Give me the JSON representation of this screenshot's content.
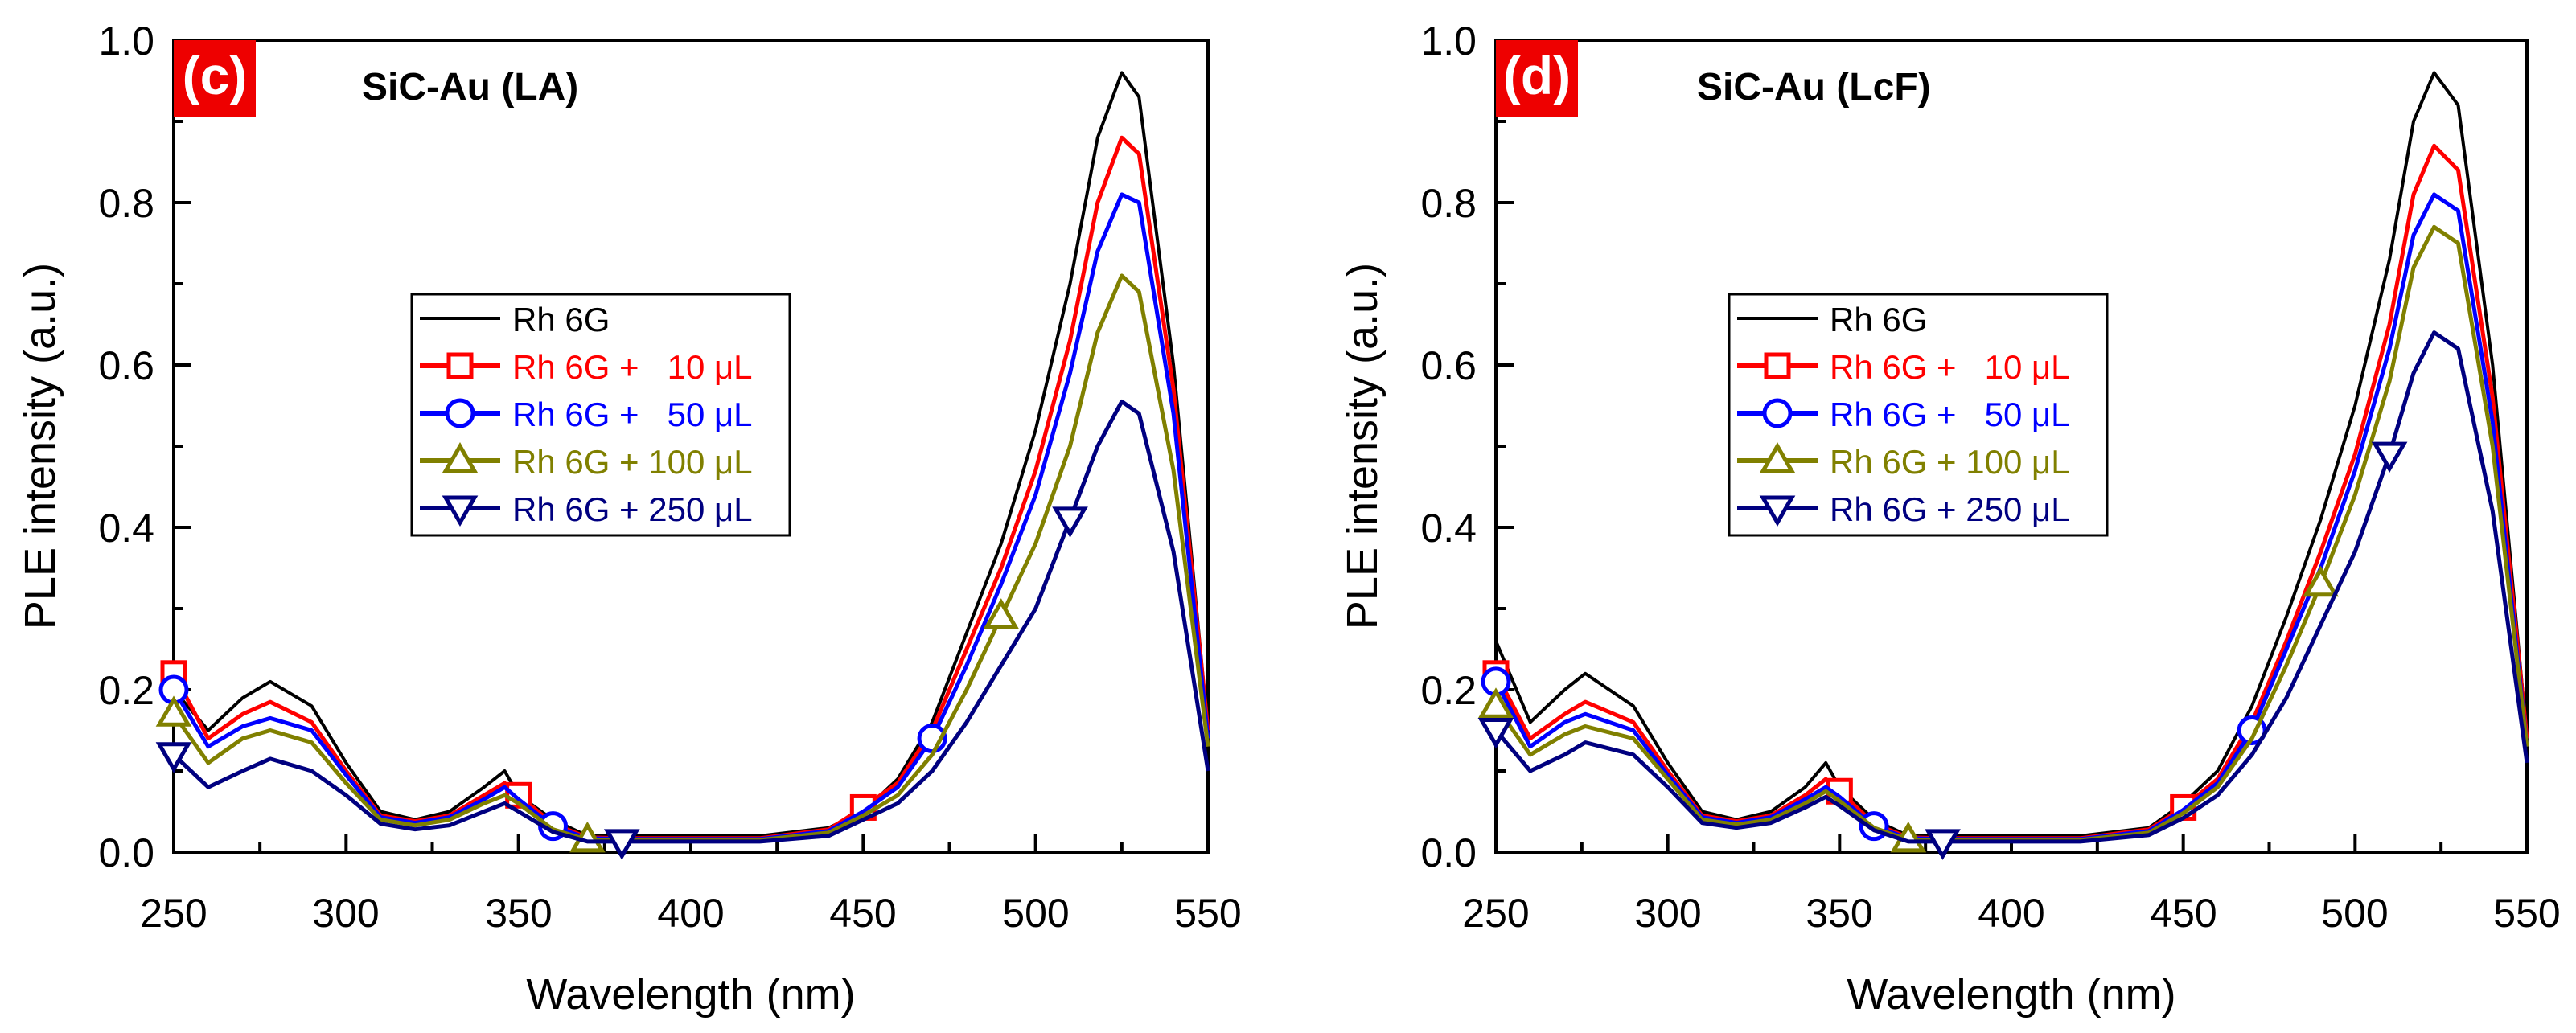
{
  "chart_data": [
    {
      "type": "line",
      "panel_label": "(c)",
      "title": "SiC-Au (LA)",
      "xlabel": "Wavelength (nm)",
      "ylabel": "PLE intensity (a.u.)",
      "xlim": [
        250,
        550
      ],
      "ylim": [
        0,
        1.0
      ],
      "x_ticks": [
        "250",
        "300",
        "350",
        "400",
        "450",
        "500",
        "550"
      ],
      "y_ticks": [
        "0.0",
        "0.2",
        "0.4",
        "0.6",
        "0.8",
        "1.0"
      ],
      "legend": [
        "Rh 6G",
        "Rh 6G +   10 μL",
        "Rh 6G +   50 μL",
        "Rh 6G + 100 μL",
        "Rh 6G + 250 μL"
      ],
      "x": [
        250,
        260,
        270,
        278,
        290,
        300,
        310,
        320,
        330,
        340,
        346,
        350,
        360,
        370,
        380,
        400,
        420,
        440,
        450,
        460,
        470,
        480,
        490,
        500,
        510,
        518,
        525,
        530,
        540,
        550
      ],
      "series": [
        {
          "name": "Rh 6G",
          "color": "#000000",
          "marker": "none",
          "values": [
            0.2,
            0.15,
            0.19,
            0.21,
            0.18,
            0.11,
            0.05,
            0.04,
            0.05,
            0.08,
            0.1,
            0.07,
            0.04,
            0.02,
            0.02,
            0.02,
            0.02,
            0.03,
            0.05,
            0.09,
            0.16,
            0.27,
            0.38,
            0.52,
            0.7,
            0.88,
            0.96,
            0.93,
            0.6,
            0.15
          ]
        },
        {
          "name": "Rh 6G + 10 μL",
          "color": "#ff0000",
          "marker": "square",
          "marker_x": [
            250,
            350,
            450
          ],
          "values": [
            0.22,
            0.14,
            0.17,
            0.185,
            0.16,
            0.1,
            0.045,
            0.038,
            0.045,
            0.07,
            0.085,
            0.07,
            0.035,
            0.018,
            0.017,
            0.017,
            0.017,
            0.028,
            0.055,
            0.085,
            0.15,
            0.25,
            0.35,
            0.47,
            0.63,
            0.8,
            0.88,
            0.86,
            0.57,
            0.15
          ]
        },
        {
          "name": "Rh 6G + 50 μL",
          "color": "#0000ff",
          "marker": "circle",
          "marker_x": [
            250,
            360,
            470
          ],
          "values": [
            0.2,
            0.13,
            0.155,
            0.165,
            0.15,
            0.095,
            0.043,
            0.036,
            0.043,
            0.065,
            0.08,
            0.065,
            0.032,
            0.017,
            0.016,
            0.016,
            0.016,
            0.026,
            0.05,
            0.08,
            0.14,
            0.23,
            0.33,
            0.44,
            0.59,
            0.74,
            0.81,
            0.8,
            0.54,
            0.14
          ]
        },
        {
          "name": "Rh 6G + 100 μL",
          "color": "#808000",
          "marker": "triangle-up",
          "marker_x": [
            250,
            370,
            490
          ],
          "values": [
            0.17,
            0.11,
            0.14,
            0.15,
            0.135,
            0.085,
            0.04,
            0.033,
            0.04,
            0.06,
            0.07,
            0.06,
            0.028,
            0.015,
            0.015,
            0.015,
            0.015,
            0.024,
            0.045,
            0.07,
            0.12,
            0.2,
            0.29,
            0.38,
            0.5,
            0.64,
            0.71,
            0.69,
            0.47,
            0.13
          ]
        },
        {
          "name": "Rh 6G + 250 μL",
          "color": "#000080",
          "marker": "triangle-down",
          "marker_x": [
            250,
            380,
            510
          ],
          "values": [
            0.12,
            0.08,
            0.1,
            0.115,
            0.1,
            0.07,
            0.035,
            0.028,
            0.033,
            0.05,
            0.06,
            0.05,
            0.025,
            0.013,
            0.013,
            0.013,
            0.013,
            0.02,
            0.04,
            0.06,
            0.1,
            0.16,
            0.23,
            0.3,
            0.41,
            0.5,
            0.555,
            0.54,
            0.37,
            0.1
          ]
        }
      ]
    },
    {
      "type": "line",
      "panel_label": "(d)",
      "title": "SiC-Au (LcF)",
      "xlabel": "Wavelength (nm)",
      "ylabel": "PLE intensity (a.u.)",
      "xlim": [
        250,
        550
      ],
      "ylim": [
        0,
        1.0
      ],
      "x_ticks": [
        "250",
        "300",
        "350",
        "400",
        "450",
        "500",
        "550"
      ],
      "y_ticks": [
        "0.0",
        "0.2",
        "0.4",
        "0.6",
        "0.8",
        "1.0"
      ],
      "legend": [
        "Rh 6G",
        "Rh 6G +   10 μL",
        "Rh 6G +   50 μL",
        "Rh 6G + 100 μL",
        "Rh 6G + 250 μL"
      ],
      "x": [
        250,
        260,
        270,
        276,
        290,
        300,
        310,
        320,
        330,
        340,
        346,
        350,
        360,
        370,
        380,
        400,
        420,
        440,
        450,
        460,
        470,
        480,
        490,
        500,
        510,
        517,
        523,
        530,
        540,
        550
      ],
      "series": [
        {
          "name": "Rh 6G",
          "color": "#000000",
          "marker": "none",
          "values": [
            0.26,
            0.16,
            0.2,
            0.22,
            0.18,
            0.11,
            0.05,
            0.04,
            0.05,
            0.08,
            0.11,
            0.08,
            0.04,
            0.02,
            0.02,
            0.02,
            0.02,
            0.03,
            0.06,
            0.1,
            0.18,
            0.29,
            0.41,
            0.55,
            0.73,
            0.9,
            0.96,
            0.92,
            0.6,
            0.14
          ]
        },
        {
          "name": "Rh 6G + 10 μL",
          "color": "#ff0000",
          "marker": "square",
          "marker_x": [
            250,
            350,
            450
          ],
          "values": [
            0.22,
            0.14,
            0.17,
            0.185,
            0.16,
            0.1,
            0.045,
            0.038,
            0.045,
            0.07,
            0.09,
            0.075,
            0.035,
            0.018,
            0.017,
            0.017,
            0.017,
            0.028,
            0.055,
            0.09,
            0.16,
            0.26,
            0.37,
            0.49,
            0.65,
            0.81,
            0.87,
            0.84,
            0.56,
            0.14
          ]
        },
        {
          "name": "Rh 6G + 50 μL",
          "color": "#0000ff",
          "marker": "circle",
          "marker_x": [
            250,
            360,
            470
          ],
          "values": [
            0.21,
            0.13,
            0.16,
            0.17,
            0.15,
            0.095,
            0.043,
            0.036,
            0.043,
            0.065,
            0.08,
            0.068,
            0.032,
            0.017,
            0.016,
            0.016,
            0.016,
            0.026,
            0.052,
            0.085,
            0.15,
            0.25,
            0.35,
            0.47,
            0.62,
            0.76,
            0.81,
            0.79,
            0.53,
            0.13
          ]
        },
        {
          "name": "Rh 6G + 100 μL",
          "color": "#808000",
          "marker": "triangle-up",
          "marker_x": [
            250,
            370,
            490
          ],
          "values": [
            0.18,
            0.12,
            0.145,
            0.155,
            0.14,
            0.09,
            0.04,
            0.034,
            0.04,
            0.06,
            0.075,
            0.063,
            0.03,
            0.015,
            0.015,
            0.015,
            0.015,
            0.024,
            0.048,
            0.08,
            0.14,
            0.23,
            0.33,
            0.44,
            0.58,
            0.72,
            0.77,
            0.75,
            0.5,
            0.13
          ]
        },
        {
          "name": "Rh 6G + 250 μL",
          "color": "#000080",
          "marker": "triangle-down",
          "marker_x": [
            250,
            380,
            510
          ],
          "values": [
            0.15,
            0.1,
            0.12,
            0.135,
            0.12,
            0.08,
            0.036,
            0.03,
            0.036,
            0.055,
            0.068,
            0.057,
            0.027,
            0.013,
            0.013,
            0.013,
            0.013,
            0.021,
            0.042,
            0.07,
            0.12,
            0.19,
            0.28,
            0.37,
            0.49,
            0.59,
            0.64,
            0.62,
            0.42,
            0.11
          ]
        }
      ]
    }
  ]
}
